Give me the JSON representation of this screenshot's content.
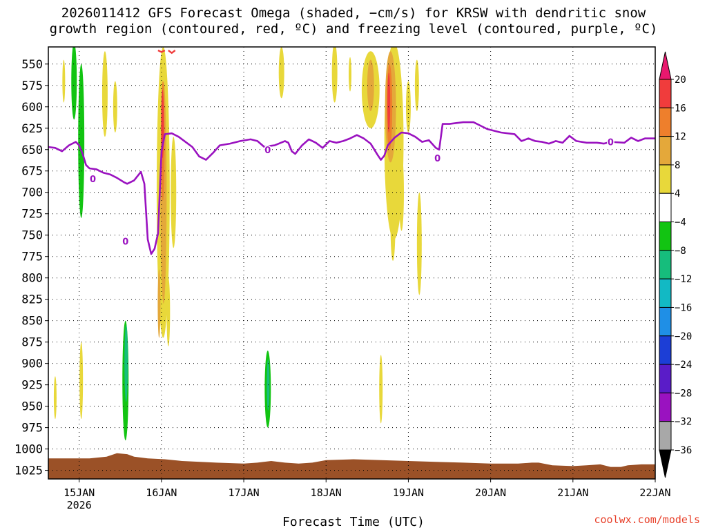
{
  "titles": {
    "line1": "2026011412 GFS Forecast Omega (shaded, −cm/s) for KRSW with dendritic snow",
    "line2": "growth region (contoured, red, ºC) and freezing level (contoured, purple, ºC)"
  },
  "xlabel": "Forecast Time (UTC)",
  "credit": "coolwx.com/models",
  "chart_data": {
    "type": "heatmap",
    "title": "2026011412 GFS Forecast Omega (shaded, −cm/s) for KRSW with dendritic snow growth region (contoured, red, ºC) and freezing level (contoured, purple, ºC)",
    "xlabel": "Forecast Time (UTC)",
    "ylabel": "",
    "x_ticks": [
      "15JAN",
      "16JAN",
      "17JAN",
      "18JAN",
      "19JAN",
      "20JAN",
      "21JAN",
      "22JAN"
    ],
    "x_year_label": "2026",
    "y_ticks": [
      550,
      575,
      600,
      625,
      650,
      675,
      700,
      725,
      750,
      775,
      800,
      825,
      850,
      875,
      900,
      925,
      950,
      975,
      1000,
      1025
    ],
    "y_range_hpa": [
      1035,
      530
    ],
    "x_range_hours_from_15jan00": [
      -9,
      168
    ],
    "grid": true,
    "colorbar": {
      "labels": [
        20,
        16,
        12,
        8,
        4,
        -4,
        -8,
        -12,
        -16,
        -20,
        -24,
        -28,
        -32,
        -36
      ],
      "bins": [
        {
          "lo": 20,
          "hi": null,
          "color": "#e8186e"
        },
        {
          "lo": 16,
          "hi": 20,
          "color": "#f03c3c"
        },
        {
          "lo": 12,
          "hi": 16,
          "color": "#ee7f2c"
        },
        {
          "lo": 8,
          "hi": 12,
          "color": "#e4a83a"
        },
        {
          "lo": 4,
          "hi": 8,
          "color": "#e8d83a"
        },
        {
          "lo": -4,
          "hi": 4,
          "color": "#ffffff"
        },
        {
          "lo": -8,
          "hi": -4,
          "color": "#12c412"
        },
        {
          "lo": -12,
          "hi": -8,
          "color": "#16bd7c"
        },
        {
          "lo": -16,
          "hi": -12,
          "color": "#12b9c4"
        },
        {
          "lo": -20,
          "hi": -16,
          "color": "#1f8fe6"
        },
        {
          "lo": -24,
          "hi": -20,
          "color": "#1c3ed6"
        },
        {
          "lo": -28,
          "hi": -24,
          "color": "#5a1cc8"
        },
        {
          "lo": -32,
          "hi": -28,
          "color": "#9a12c0"
        },
        {
          "lo": -36,
          "hi": -32,
          "color": "#a8a8a8"
        },
        {
          "lo": null,
          "hi": -36,
          "color": "#000000"
        }
      ]
    },
    "freezing_level": {
      "label": "0",
      "color": "#9a12c0",
      "points": [
        [
          -9,
          647
        ],
        [
          -7,
          648
        ],
        [
          -5,
          652
        ],
        [
          -3,
          645
        ],
        [
          -1,
          641
        ],
        [
          0,
          645
        ],
        [
          1,
          655
        ],
        [
          2,
          668
        ],
        [
          3,
          672
        ],
        [
          5,
          673
        ],
        [
          7,
          677
        ],
        [
          9,
          679
        ],
        [
          11,
          683
        ],
        [
          13,
          688
        ],
        [
          14,
          690
        ],
        [
          16,
          686
        ],
        [
          18,
          676
        ],
        [
          19,
          690
        ],
        [
          20,
          755
        ],
        [
          21,
          772
        ],
        [
          22,
          766
        ],
        [
          23,
          748
        ],
        [
          23.5,
          700
        ],
        [
          24,
          652
        ],
        [
          25,
          632
        ],
        [
          27,
          631
        ],
        [
          29,
          635
        ],
        [
          31,
          641
        ],
        [
          33,
          647
        ],
        [
          35,
          658
        ],
        [
          37,
          662
        ],
        [
          39,
          654
        ],
        [
          41,
          645
        ],
        [
          44,
          643
        ],
        [
          47,
          640
        ],
        [
          50,
          638
        ],
        [
          52,
          640
        ],
        [
          54,
          647
        ],
        [
          55,
          646
        ],
        [
          57,
          645
        ],
        [
          60,
          640
        ],
        [
          61,
          642
        ],
        [
          62,
          652
        ],
        [
          63,
          655
        ],
        [
          65,
          645
        ],
        [
          67,
          638
        ],
        [
          69,
          642
        ],
        [
          71,
          648
        ],
        [
          73,
          640
        ],
        [
          75,
          642
        ],
        [
          77,
          640
        ],
        [
          79,
          637
        ],
        [
          81,
          633
        ],
        [
          83,
          637
        ],
        [
          85,
          643
        ],
        [
          87,
          656
        ],
        [
          88,
          662
        ],
        [
          89,
          657
        ],
        [
          90,
          645
        ],
        [
          92,
          636
        ],
        [
          94,
          630
        ],
        [
          96,
          631
        ],
        [
          98,
          635
        ],
        [
          100,
          641
        ],
        [
          102,
          639
        ],
        [
          104,
          648
        ],
        [
          105,
          650
        ],
        [
          106,
          620
        ],
        [
          108,
          620
        ],
        [
          112,
          618
        ],
        [
          115,
          618
        ],
        [
          117,
          622
        ],
        [
          119,
          626
        ],
        [
          121,
          628
        ],
        [
          123,
          630
        ],
        [
          127,
          632
        ],
        [
          129,
          640
        ],
        [
          131,
          637
        ],
        [
          133,
          640
        ],
        [
          135,
          641
        ],
        [
          137,
          643
        ],
        [
          139,
          640
        ],
        [
          141,
          642
        ],
        [
          143,
          634
        ],
        [
          145,
          640
        ],
        [
          148,
          642
        ],
        [
          151,
          642
        ],
        [
          153,
          643
        ],
        [
          155,
          641
        ],
        [
          159,
          642
        ],
        [
          161,
          636
        ],
        [
          163,
          640
        ],
        [
          165,
          637
        ],
        [
          168,
          637
        ]
      ]
    },
    "snow_growth_region": {
      "color": "#f03c3c",
      "segments": [
        [
          [
            23,
            534
          ],
          [
            24,
            536
          ],
          [
            25,
            534
          ]
        ],
        [
          [
            26,
            534
          ],
          [
            27,
            537
          ],
          [
            28,
            534
          ]
        ]
      ]
    },
    "omega_regions": [
      {
        "bin": -4,
        "shape": "ellipse",
        "x": -2.7,
        "p": 545,
        "rx_h": 0.8,
        "rp": 22
      },
      {
        "bin": -4,
        "shape": "ellipse",
        "x": -0.5,
        "p": 620,
        "rx_h": 1.3,
        "rp": 85
      },
      {
        "bin": -4,
        "shape": "ellipse",
        "x": -2,
        "p": 820,
        "rx_h": 0.8,
        "rp": 70
      },
      {
        "bin": -4,
        "shape": "ellipse",
        "x": 0.2,
        "p": 780,
        "rx_h": 1.3,
        "rp": 190
      },
      {
        "bin": -4,
        "shape": "ellipse",
        "x": 3.2,
        "p": 620,
        "rx_h": 1.2,
        "rp": 115
      },
      {
        "bin": -4,
        "shape": "ellipse",
        "x": 7,
        "p": 550,
        "rx_h": 1.8,
        "rp": 30
      },
      {
        "bin": -4,
        "shape": "ellipse",
        "x": 11.5,
        "p": 800,
        "rx_h": 1.4,
        "rp": 100
      },
      {
        "bin": -4,
        "shape": "ellipse",
        "x": 13.2,
        "p": 925,
        "rx_h": 1.5,
        "rp": 85
      },
      {
        "bin": -4,
        "shape": "ellipse",
        "x": 16,
        "p": 560,
        "rx_h": 1.4,
        "rp": 40
      },
      {
        "bin": -4,
        "shape": "ellipse",
        "x": 19.5,
        "p": 700,
        "rx_h": 1.3,
        "rp": 180
      },
      {
        "bin": -4,
        "shape": "ellipse",
        "x": 21,
        "p": 880,
        "rx_h": 0.8,
        "rp": 90
      },
      {
        "bin": -4,
        "shape": "ellipse",
        "x": 55,
        "p": 920,
        "rx_h": 2,
        "rp": 75
      },
      {
        "bin": -4,
        "shape": "ellipse",
        "x": 62,
        "p": 880,
        "rx_h": 0.8,
        "rp": 45
      },
      {
        "bin": -4,
        "shape": "ellipse",
        "x": 70.5,
        "p": 770,
        "rx_h": 1.2,
        "rp": 35
      },
      {
        "bin": -4,
        "shape": "ellipse",
        "x": 74,
        "p": 935,
        "rx_h": 0.6,
        "rp": 45
      },
      {
        "bin": -4,
        "shape": "ellipse",
        "x": 77,
        "p": 685,
        "rx_h": 1,
        "rp": 45
      },
      {
        "bin": -4,
        "shape": "ellipse",
        "x": 78,
        "p": 840,
        "rx_h": 0.5,
        "rp": 16
      },
      {
        "bin": -4,
        "shape": "ellipse",
        "x": 83.5,
        "p": 890,
        "rx_h": 1.3,
        "rp": 80
      },
      {
        "bin": -4,
        "shape": "ellipse",
        "x": 88,
        "p": 898,
        "rx_h": 0.7,
        "rp": 10
      },
      {
        "bin": -4,
        "shape": "ellipse",
        "x": 92,
        "p": 900,
        "rx_h": 0.6,
        "rp": 12
      },
      {
        "bin": -8,
        "shape": "ellipse",
        "x": -1.5,
        "p": 570,
        "rx_h": 0.8,
        "rp": 45
      },
      {
        "bin": -8,
        "shape": "ellipse",
        "x": 0.6,
        "p": 640,
        "rx_h": 0.9,
        "rp": 90
      },
      {
        "bin": -8,
        "shape": "ellipse",
        "x": 13.5,
        "p": 920,
        "rx_h": 0.9,
        "rp": 70
      },
      {
        "bin": -8,
        "shape": "ellipse",
        "x": 55,
        "p": 930,
        "rx_h": 0.9,
        "rp": 45
      },
      {
        "bin": -12,
        "shape": "ellipse",
        "x": 13.7,
        "p": 900,
        "rx_h": 0.5,
        "rp": 45
      },
      {
        "bin": -12,
        "shape": "ellipse",
        "x": 55.1,
        "p": 925,
        "rx_h": 0.4,
        "rp": 30
      },
      {
        "bin": 4,
        "shape": "ellipse",
        "x": -7,
        "p": 940,
        "rx_h": 0.4,
        "rp": 25
      },
      {
        "bin": 4,
        "shape": "ellipse",
        "x": -4.5,
        "p": 570,
        "rx_h": 0.4,
        "rp": 25
      },
      {
        "bin": 4,
        "shape": "ellipse",
        "x": 0.6,
        "p": 920,
        "rx_h": 0.5,
        "rp": 45
      },
      {
        "bin": 4,
        "shape": "ellipse",
        "x": 7.5,
        "p": 585,
        "rx_h": 0.8,
        "rp": 50
      },
      {
        "bin": 4,
        "shape": "ellipse",
        "x": 10.5,
        "p": 600,
        "rx_h": 0.6,
        "rp": 30
      },
      {
        "bin": 4,
        "shape": "ellipse",
        "x": 24.5,
        "p": 700,
        "rx_h": 1.9,
        "rp": 170
      },
      {
        "bin": 4,
        "shape": "ellipse",
        "x": 27.5,
        "p": 700,
        "rx_h": 0.8,
        "rp": 65
      },
      {
        "bin": 4,
        "shape": "ellipse",
        "x": 26,
        "p": 840,
        "rx_h": 0.5,
        "rp": 40
      },
      {
        "bin": 4,
        "shape": "ellipse",
        "x": 59,
        "p": 560,
        "rx_h": 0.8,
        "rp": 30
      },
      {
        "bin": 4,
        "shape": "ellipse",
        "x": 74.5,
        "p": 560,
        "rx_h": 0.8,
        "rp": 35
      },
      {
        "bin": 4,
        "shape": "ellipse",
        "x": 79,
        "p": 562,
        "rx_h": 0.4,
        "rp": 20
      },
      {
        "bin": 4,
        "shape": "ellipse",
        "x": 85,
        "p": 580,
        "rx_h": 2.6,
        "rp": 45
      },
      {
        "bin": 4,
        "shape": "ellipse",
        "x": 91.8,
        "p": 640,
        "rx_h": 2.8,
        "rp": 115
      },
      {
        "bin": 4,
        "shape": "ellipse",
        "x": 91.5,
        "p": 740,
        "rx_h": 0.7,
        "rp": 40
      },
      {
        "bin": 4,
        "shape": "ellipse",
        "x": 88,
        "p": 930,
        "rx_h": 0.5,
        "rp": 40
      },
      {
        "bin": 4,
        "shape": "ellipse",
        "x": 94,
        "p": 700,
        "rx_h": 0.7,
        "rp": 45
      },
      {
        "bin": 4,
        "shape": "ellipse",
        "x": 96,
        "p": 600,
        "rx_h": 0.7,
        "rp": 30
      },
      {
        "bin": 4,
        "shape": "ellipse",
        "x": 98.5,
        "p": 575,
        "rx_h": 0.6,
        "rp": 30
      },
      {
        "bin": 4,
        "shape": "ellipse",
        "x": 99.2,
        "p": 760,
        "rx_h": 0.7,
        "rp": 60
      },
      {
        "bin": 8,
        "shape": "ellipse",
        "x": 24.6,
        "p": 700,
        "rx_h": 0.9,
        "rp": 130
      },
      {
        "bin": 8,
        "shape": "ellipse",
        "x": 23.3,
        "p": 830,
        "rx_h": 0.4,
        "rp": 40
      },
      {
        "bin": 8,
        "shape": "ellipse",
        "x": 85,
        "p": 575,
        "rx_h": 1,
        "rp": 30
      },
      {
        "bin": 8,
        "shape": "ellipse",
        "x": 90.8,
        "p": 600,
        "rx_h": 1.6,
        "rp": 65
      },
      {
        "bin": 12,
        "shape": "ellipse",
        "x": 24.4,
        "p": 640,
        "rx_h": 0.5,
        "rp": 70
      },
      {
        "bin": 12,
        "shape": "ellipse",
        "x": 90.5,
        "p": 600,
        "rx_h": 0.8,
        "rp": 50
      },
      {
        "bin": 16,
        "shape": "ellipse",
        "x": 24.3,
        "p": 620,
        "rx_h": 0.25,
        "rp": 40
      },
      {
        "bin": 16,
        "shape": "ellipse",
        "x": 90.3,
        "p": 595,
        "rx_h": 0.35,
        "rp": 35
      }
    ],
    "terrain": {
      "color": "#9b5127",
      "surface": [
        [
          -9,
          1011
        ],
        [
          3,
          1011
        ],
        [
          8,
          1009
        ],
        [
          11,
          1005
        ],
        [
          14,
          1006
        ],
        [
          16,
          1009
        ],
        [
          20,
          1011
        ],
        [
          25,
          1012
        ],
        [
          30,
          1014
        ],
        [
          40,
          1016
        ],
        [
          48,
          1017
        ],
        [
          52,
          1016
        ],
        [
          56,
          1014
        ],
        [
          60,
          1016
        ],
        [
          64,
          1017
        ],
        [
          68,
          1016
        ],
        [
          72,
          1013
        ],
        [
          80,
          1012
        ],
        [
          88,
          1013
        ],
        [
          96,
          1014
        ],
        [
          104,
          1015
        ],
        [
          112,
          1016
        ],
        [
          120,
          1017
        ],
        [
          128,
          1017
        ],
        [
          132,
          1016
        ],
        [
          134,
          1016
        ],
        [
          138,
          1019
        ],
        [
          144,
          1020
        ],
        [
          148,
          1019
        ],
        [
          152,
          1018
        ],
        [
          155,
          1021
        ],
        [
          158,
          1021
        ],
        [
          160,
          1019
        ],
        [
          164,
          1018
        ],
        [
          168,
          1018
        ]
      ]
    }
  }
}
